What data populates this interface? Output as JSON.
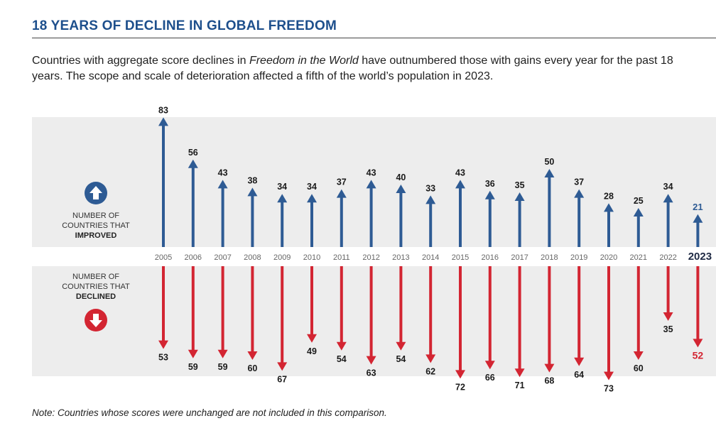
{
  "header": {
    "title": "18 YEARS OF DECLINE IN GLOBAL FREEDOM",
    "subtitle_pre": "Countries with aggregate score declines in ",
    "subtitle_em": "Freedom in the World",
    "subtitle_post": " have outnumbered those with gains every year for the past 18 years. The scope and scale of deterioration affected a fifth of the world’s population in 2023."
  },
  "legend": {
    "improved_line1": "NUMBER OF",
    "improved_line2": "COUNTRIES THAT",
    "improved_line3": "IMPROVED",
    "declined_line1": "NUMBER OF",
    "declined_line2": "COUNTRIES THAT",
    "declined_line3": "DECLINED",
    "improved_icon": "up-arrow-circle-icon",
    "declined_icon": "down-arrow-circle-icon"
  },
  "note": "Note: Countries whose scores were unchanged are not included in this comparison.",
  "colors": {
    "improved": "#2e5b94",
    "declined": "#d32532",
    "band": "#ededed",
    "title": "#1d4f8c"
  },
  "chart_data": {
    "type": "bar",
    "categories": [
      "2005",
      "2006",
      "2007",
      "2008",
      "2009",
      "2010",
      "2011",
      "2012",
      "2013",
      "2014",
      "2015",
      "2016",
      "2017",
      "2018",
      "2019",
      "2020",
      "2021",
      "2022",
      "2023"
    ],
    "series": [
      {
        "name": "NUMBER OF COUNTRIES THAT IMPROVED",
        "values": [
          83,
          56,
          43,
          38,
          34,
          34,
          37,
          43,
          40,
          33,
          43,
          36,
          35,
          50,
          37,
          28,
          25,
          34,
          21
        ]
      },
      {
        "name": "NUMBER OF COUNTRIES THAT DECLINED",
        "values": [
          53,
          59,
          59,
          60,
          67,
          49,
          54,
          63,
          54,
          62,
          72,
          66,
          71,
          68,
          64,
          73,
          60,
          35,
          52
        ]
      }
    ],
    "highlight_category": "2023"
  }
}
